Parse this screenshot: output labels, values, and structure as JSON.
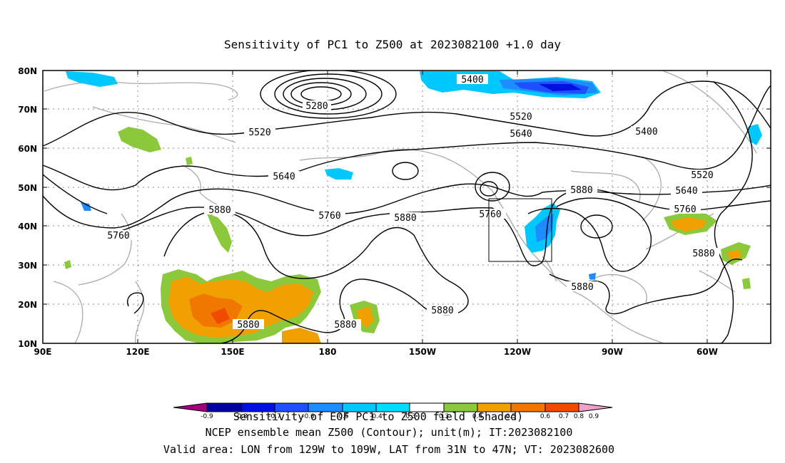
{
  "title": "Sensitivity of PC1 to Z500 at 2023082100 +1.0 day",
  "axes": {
    "x_ticks": [
      "90E",
      "120E",
      "150E",
      "180",
      "150W",
      "120W",
      "90W",
      "60W"
    ],
    "y_ticks": [
      "80N",
      "70N",
      "60N",
      "50N",
      "40N",
      "30N",
      "20N",
      "10N"
    ],
    "lon_range": [
      90,
      330
    ],
    "lat_range": [
      10,
      80
    ]
  },
  "contour_labels": [
    "5280",
    "5400",
    "5400",
    "5520",
    "5520",
    "5520",
    "5640",
    "5640",
    "5640",
    "5760",
    "5760",
    "5760",
    "5760",
    "5880",
    "5880",
    "5880",
    "5880",
    "5880",
    "5880",
    "5880",
    "5880"
  ],
  "valid_area_box": {
    "lon": [
      -129,
      -109
    ],
    "lat": [
      31,
      47
    ]
  },
  "colorbar": {
    "labels": [
      "-0.9",
      "-0.8",
      "-0.7",
      "-0.6",
      "-0.5",
      "-0.4",
      "-0.3",
      "0.3",
      "0.4",
      "0.5",
      "0.6",
      "0.7",
      "0.8",
      "0.9"
    ],
    "colors": [
      "#a00080",
      "#0000a0",
      "#0010e0",
      "#1e50ff",
      "#1e8cff",
      "#00c8ff",
      "#00dcff",
      "#ffffff",
      "#8cc83c",
      "#f0a000",
      "#f07800",
      "#f04b00",
      "#f02800",
      "#e00000",
      "#f0a0c8"
    ]
  },
  "footer": {
    "line1": "Sensitivity of EOF PC1 to Z500 field (Shaded)",
    "line2": "NCEP ensemble mean Z500 (Contour); unit(m); IT:2023082100",
    "line3": "Valid area: LON from 129W to 109W, LAT from 31N to 47N; VT: 2023082600"
  }
}
